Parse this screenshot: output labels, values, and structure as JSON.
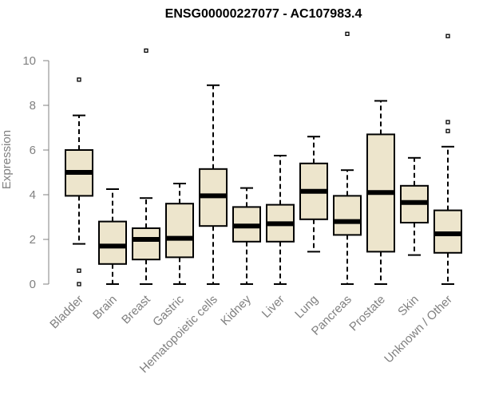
{
  "chart_data": {
    "type": "boxplot",
    "title": "ENSG00000227077 - AC107983.4",
    "ylabel": "Expression",
    "xlabel": "",
    "ylim": [
      0,
      11.5
    ],
    "yticks": [
      0,
      2,
      4,
      6,
      8,
      10
    ],
    "grid": false,
    "legend": "none",
    "categories": [
      "Bladder",
      "Brain",
      "Breast",
      "Gastric",
      "Hematopoietic cells",
      "Kidney",
      "Liver",
      "Lung",
      "Pancreas",
      "Prostate",
      "Skin",
      "Unknown / Other"
    ],
    "boxes": [
      {
        "category": "Bladder",
        "whisker_low": 1.8,
        "q1": 3.95,
        "median": 5.0,
        "q3": 6.0,
        "whisker_high": 7.55,
        "outliers": [
          9.15,
          0.6,
          0.0
        ]
      },
      {
        "category": "Brain",
        "whisker_low": 0.0,
        "q1": 0.9,
        "median": 1.7,
        "q3": 2.8,
        "whisker_high": 4.25,
        "outliers": []
      },
      {
        "category": "Breast",
        "whisker_low": 0.0,
        "q1": 1.1,
        "median": 2.0,
        "q3": 2.5,
        "whisker_high": 3.85,
        "outliers": [
          10.45
        ]
      },
      {
        "category": "Gastric",
        "whisker_low": 0.0,
        "q1": 1.2,
        "median": 2.05,
        "q3": 3.6,
        "whisker_high": 4.5,
        "outliers": []
      },
      {
        "category": "Hematopoietic cells",
        "whisker_low": 0.0,
        "q1": 2.6,
        "median": 3.95,
        "q3": 5.15,
        "whisker_high": 8.9,
        "outliers": []
      },
      {
        "category": "Kidney",
        "whisker_low": 0.0,
        "q1": 1.9,
        "median": 2.6,
        "q3": 3.45,
        "whisker_high": 4.3,
        "outliers": []
      },
      {
        "category": "Liver",
        "whisker_low": 0.0,
        "q1": 1.9,
        "median": 2.7,
        "q3": 3.55,
        "whisker_high": 5.75,
        "outliers": []
      },
      {
        "category": "Lung",
        "whisker_low": 1.45,
        "q1": 2.9,
        "median": 4.15,
        "q3": 5.4,
        "whisker_high": 6.6,
        "outliers": []
      },
      {
        "category": "Pancreas",
        "whisker_low": 0.0,
        "q1": 2.2,
        "median": 2.8,
        "q3": 3.95,
        "whisker_high": 5.1,
        "outliers": [
          11.2
        ]
      },
      {
        "category": "Prostate",
        "whisker_low": 0.0,
        "q1": 1.45,
        "median": 4.1,
        "q3": 6.7,
        "whisker_high": 8.2,
        "outliers": []
      },
      {
        "category": "Skin",
        "whisker_low": 1.3,
        "q1": 2.75,
        "median": 3.65,
        "q3": 4.4,
        "whisker_high": 5.65,
        "outliers": []
      },
      {
        "category": "Unknown / Other",
        "whisker_low": 0.0,
        "q1": 1.4,
        "median": 2.25,
        "q3": 3.3,
        "whisker_high": 6.15,
        "outliers": [
          6.85,
          7.25,
          11.1
        ]
      }
    ],
    "colors": {
      "box_fill": "#ede5cc",
      "box_stroke": "#000000",
      "median": "#000000",
      "axis": "#808080",
      "title": "#000000"
    }
  }
}
